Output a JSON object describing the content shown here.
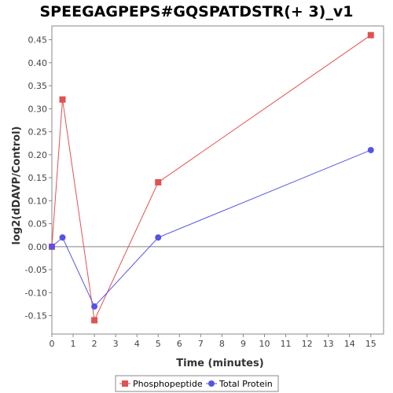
{
  "chart_data": {
    "type": "line",
    "title": "SPEEGAGPEPS#GQSPATDSTR(+ 3)_v1",
    "xlabel": "Time (minutes)",
    "ylabel": "log2(dDAVP/Control)",
    "xlim": [
      0,
      15.6
    ],
    "ylim": [
      -0.19,
      0.48
    ],
    "xticks": [
      0,
      1,
      2,
      3,
      4,
      5,
      6,
      7,
      8,
      9,
      10,
      11,
      12,
      13,
      14,
      15
    ],
    "yticks": [
      -0.15,
      -0.1,
      -0.05,
      0.0,
      0.05,
      0.1,
      0.15,
      0.2,
      0.25,
      0.3,
      0.35,
      0.4,
      0.45
    ],
    "ytick_labels": [
      "-0.15",
      "-0.10",
      "-0.05",
      "0.00",
      "0.05",
      "0.10",
      "0.15",
      "0.20",
      "0.25",
      "0.30",
      "0.35",
      "0.40",
      "0.45"
    ],
    "zero_line": true,
    "grid": false,
    "legend_position": "bottom",
    "series": [
      {
        "name": "Phosphopeptide",
        "color": "#e05252",
        "marker": "square",
        "x": [
          0,
          0.5,
          2,
          5,
          15
        ],
        "y": [
          0.0,
          0.32,
          -0.16,
          0.14,
          0.46
        ]
      },
      {
        "name": "Total Protein",
        "color": "#5454e6",
        "marker": "circle",
        "x": [
          0,
          0.5,
          2,
          5,
          15
        ],
        "y": [
          0.0,
          0.02,
          -0.13,
          0.02,
          0.21
        ]
      }
    ]
  }
}
